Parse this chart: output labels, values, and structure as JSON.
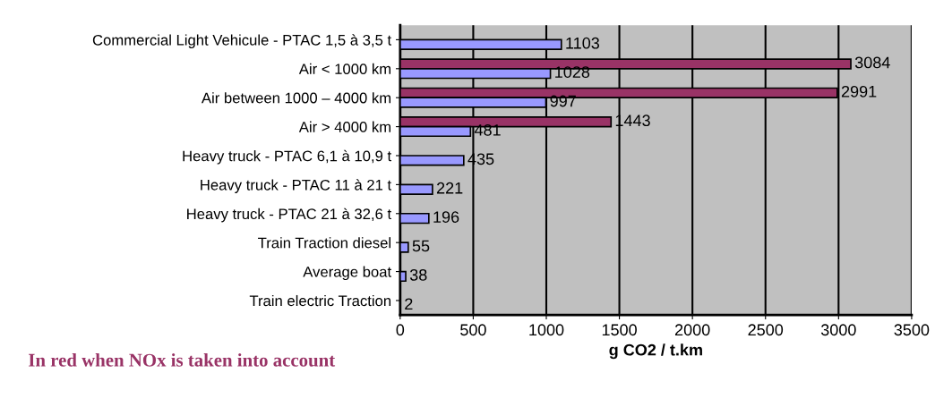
{
  "chart_data": {
    "type": "bar",
    "orientation": "horizontal",
    "xlabel": "g CO2 / t.km",
    "categories": [
      "Commercial Light Vehicule - PTAC 1,5 à 3,5 t",
      "Air < 1000 km",
      "Air between 1000 – 4000 km",
      "Air > 4000 km",
      "Heavy truck - PTAC 6,1 à 10,9 t",
      "Heavy truck - PTAC 11 à 21 t",
      "Heavy truck - PTAC 21 à 32,6 t",
      "Train Traction diesel",
      "Average boat",
      "Train electric Traction"
    ],
    "series": [
      {
        "color": "#993366",
        "values": [
          null,
          3084,
          2991,
          1443,
          null,
          null,
          null,
          null,
          null,
          null
        ]
      },
      {
        "color": "#9999ff",
        "values": [
          1103,
          1028,
          997,
          481,
          435,
          221,
          196,
          55,
          38,
          2
        ]
      }
    ],
    "xlim": [
      0,
      3500
    ],
    "xticks": [
      0,
      500,
      1000,
      1500,
      2000,
      2500,
      3000,
      3500
    ],
    "grid": "x",
    "data_labels": true,
    "legend": false,
    "annotations": [
      "In red when NOx is taken into account"
    ]
  }
}
